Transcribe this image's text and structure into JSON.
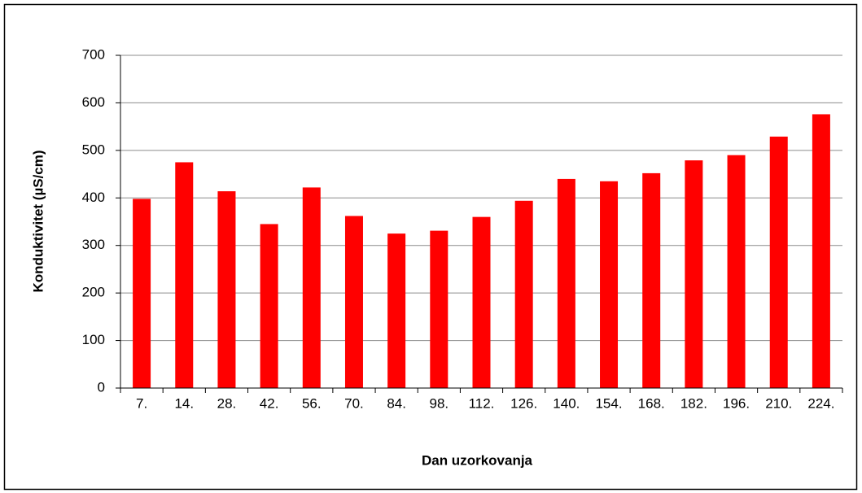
{
  "chart_data": {
    "type": "bar",
    "x_label": "Dan uzorkovanja",
    "y_label": "Konduktivitet (µS/cm)",
    "categories": [
      "7.",
      "14.",
      "28.",
      "42.",
      "56.",
      "70.",
      "84.",
      "98.",
      "112.",
      "126.",
      "140.",
      "154.",
      "168.",
      "182.",
      "196.",
      "210.",
      "224."
    ],
    "values": [
      398,
      475,
      414,
      345,
      422,
      362,
      325,
      331,
      360,
      394,
      440,
      435,
      452,
      479,
      490,
      529,
      576
    ],
    "color": "#ff0000",
    "ylim": [
      0,
      700
    ],
    "yticks": [
      0,
      100,
      200,
      300,
      400,
      500,
      600,
      700
    ],
    "grid": true
  }
}
